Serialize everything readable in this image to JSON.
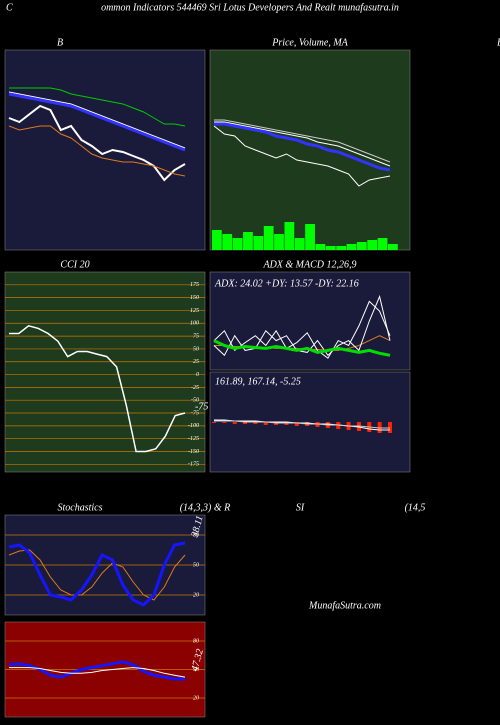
{
  "header": {
    "corner": "C",
    "title": "ommon  Indicators 544469 Sri  Lotus Developers And Realt munafasutra.in",
    "watermark": "MunafaSutra.com",
    "labels": [
      "Stochastics",
      "(14,3,3) & R",
      "SI",
      "(14,5",
      "B"
    ]
  },
  "chart_data": [
    {
      "type": "line",
      "title": "B",
      "background": "#1a1a3a",
      "ylim": [
        0,
        100
      ],
      "series": [
        {
          "color": "#00cc00",
          "width": 1,
          "values": [
            81,
            81,
            81,
            81,
            81,
            80,
            78,
            77,
            76,
            75,
            74,
            73,
            71,
            69,
            66,
            63,
            63,
            62
          ]
        },
        {
          "color": "#ffffff",
          "width": 1,
          "values": [
            79,
            78,
            77,
            76,
            75,
            74,
            73,
            71,
            69,
            67,
            65,
            63,
            61,
            59,
            57,
            55,
            53,
            51
          ]
        },
        {
          "color": "#3333ff",
          "width": 3,
          "values": [
            78,
            77,
            76,
            75,
            74,
            73,
            72,
            70,
            68,
            66,
            64,
            62,
            60,
            58,
            56,
            54,
            52,
            50
          ]
        },
        {
          "color": "#ffffff",
          "width": 2,
          "values": [
            66,
            64,
            68,
            72,
            70,
            60,
            62,
            55,
            52,
            48,
            50,
            49,
            47,
            45,
            42,
            35,
            40,
            43
          ]
        },
        {
          "color": "#e07820",
          "width": 1,
          "values": [
            62,
            60,
            61,
            62,
            62,
            58,
            56,
            52,
            48,
            46,
            45,
            44,
            44,
            43,
            42,
            40,
            38,
            37
          ]
        }
      ]
    },
    {
      "type": "line",
      "title": "Price,  Volume,  MA",
      "background": "#1e3b1e",
      "ylim": [
        0,
        100
      ],
      "series": [
        {
          "color": "#cccccc",
          "width": 1,
          "values": [
            65,
            65,
            64,
            63,
            62,
            61,
            60,
            59,
            58,
            57,
            56,
            55,
            54,
            52,
            50,
            48,
            46,
            44
          ]
        },
        {
          "color": "#ffffff",
          "width": 1,
          "values": [
            64,
            64,
            63,
            62,
            61,
            60,
            59,
            58,
            57,
            56,
            54,
            53,
            52,
            50,
            48,
            46,
            44,
            42
          ]
        },
        {
          "color": "#3333ff",
          "width": 3,
          "values": [
            63,
            63,
            62,
            61,
            60,
            59,
            57,
            56,
            55,
            53,
            52,
            50,
            49,
            47,
            45,
            43,
            41,
            40
          ]
        },
        {
          "color": "#ffffff",
          "width": 1,
          "values": [
            62,
            58,
            57,
            52,
            50,
            48,
            46,
            48,
            45,
            44,
            43,
            42,
            40,
            38,
            32,
            35,
            36,
            37
          ]
        }
      ],
      "volume": {
        "color": "#00ff00",
        "values": [
          10,
          8,
          6,
          9,
          7,
          12,
          8,
          14,
          6,
          13,
          3,
          2,
          2,
          3,
          4,
          5,
          6,
          3
        ]
      }
    },
    {
      "type": "line",
      "title": "CCI 20",
      "background": "#1e3b1e",
      "grid_color": "#c87800",
      "ylim": [
        -190,
        200
      ],
      "yticks": [
        175,
        150,
        125,
        100,
        75,
        50,
        25,
        0,
        -25,
        -50,
        -75,
        -100,
        -125,
        -150,
        -175
      ],
      "annotation": "-75",
      "series": [
        {
          "color": "#ffffff",
          "width": 1.5,
          "values": [
            80,
            80,
            95,
            90,
            80,
            65,
            35,
            45,
            45,
            40,
            35,
            15,
            -60,
            -150,
            -150,
            -145,
            -120,
            -80,
            -75
          ]
        }
      ]
    },
    {
      "type": "line",
      "title": "ADX  & MACD 12,26,9",
      "background": "#1a1a3a",
      "ylim": [
        0,
        100
      ],
      "text": "ADX: 24.02  +DY: 13.57 -DY: 22.16",
      "series": [
        {
          "color": "#e07820",
          "width": 1,
          "values": [
            25,
            25,
            24,
            24,
            23,
            23,
            22,
            22,
            22,
            21,
            21,
            20,
            20,
            22,
            25,
            30,
            35,
            30
          ]
        },
        {
          "color": "#ffffff",
          "width": 1,
          "values": [
            30,
            40,
            20,
            28,
            35,
            25,
            40,
            22,
            28,
            38,
            20,
            12,
            30,
            25,
            45,
            70,
            60,
            35
          ]
        },
        {
          "color": "#ffffff",
          "width": 1,
          "values": [
            25,
            15,
            35,
            20,
            22,
            40,
            30,
            35,
            20,
            18,
            30,
            15,
            25,
            30,
            20,
            50,
            75,
            30
          ]
        },
        {
          "color": "#00dd00",
          "width": 3,
          "values": [
            30,
            25,
            22,
            24,
            23,
            22,
            24,
            22,
            20,
            22,
            18,
            20,
            22,
            20,
            18,
            20,
            17,
            15
          ]
        }
      ],
      "macd": {
        "text": "161.89,  167.14,  -5.25",
        "ylim": [
          -50,
          50
        ],
        "series": [
          {
            "color": "#ffffff",
            "width": 1,
            "values": [
              2,
              2,
              1,
              1,
              1,
              0,
              0,
              0,
              -1,
              -1,
              -2,
              -2,
              -3,
              -4,
              -5,
              -7,
              -8,
              -8
            ]
          },
          {
            "color": "#cccccc",
            "width": 1,
            "values": [
              1,
              1,
              1,
              0,
              0,
              0,
              -1,
              -1,
              -1,
              -2,
              -2,
              -3,
              -3,
              -4,
              -4,
              -5,
              -6,
              -6
            ]
          }
        ],
        "histogram": {
          "color": "#ff2200",
          "values": [
            -1,
            -1,
            -2,
            -2,
            -2,
            -3,
            -3,
            -3,
            -4,
            -4,
            -5,
            -6,
            -7,
            -8,
            -9,
            -10,
            -11,
            -11
          ]
        }
      }
    },
    {
      "type": "line",
      "background": "#1a1a3a",
      "grid_color": "#c87800",
      "ylim": [
        0,
        100
      ],
      "yticks": [
        80,
        50,
        20
      ],
      "annotation": "38.11",
      "series": [
        {
          "color": "#e07820",
          "width": 1,
          "values": [
            60,
            64,
            65,
            55,
            38,
            25,
            20,
            20,
            28,
            42,
            52,
            48,
            33,
            20,
            15,
            28,
            48,
            60
          ]
        },
        {
          "color": "#1515ff",
          "width": 3,
          "values": [
            68,
            70,
            62,
            40,
            20,
            18,
            15,
            25,
            40,
            60,
            55,
            30,
            15,
            10,
            20,
            50,
            70,
            72
          ]
        }
      ]
    },
    {
      "type": "line",
      "background": "#8b0000",
      "grid_color": "#c87800",
      "ylim": [
        0,
        100
      ],
      "yticks": [
        80,
        50,
        20
      ],
      "annotation": "47.32",
      "series": [
        {
          "color": "#1515ff",
          "width": 3,
          "values": [
            55,
            56,
            54,
            50,
            44,
            42,
            46,
            50,
            52,
            54,
            56,
            58,
            55,
            48,
            44,
            42,
            40,
            40
          ]
        },
        {
          "color": "#ffffff",
          "width": 1,
          "values": [
            52,
            52,
            52,
            51,
            49,
            47,
            46,
            46,
            47,
            49,
            50,
            51,
            52,
            51,
            49,
            46,
            44,
            42
          ]
        }
      ]
    }
  ]
}
